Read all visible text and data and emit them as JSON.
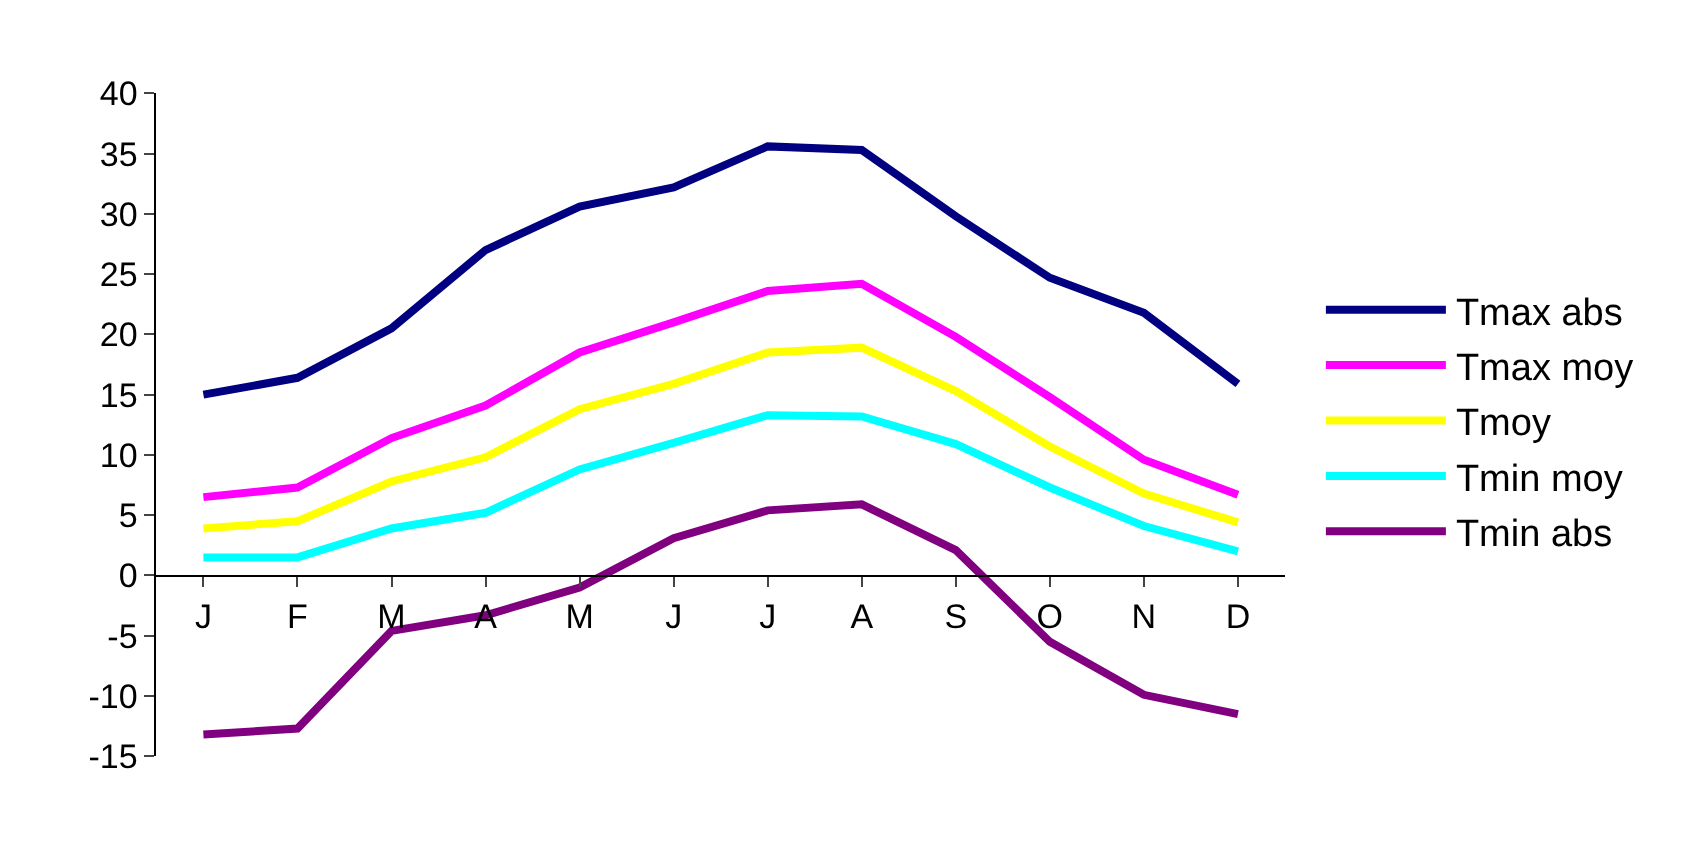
{
  "chart_data": {
    "type": "line",
    "categories": [
      "J",
      "F",
      "M",
      "A",
      "M",
      "J",
      "J",
      "A",
      "S",
      "O",
      "N",
      "D"
    ],
    "series": [
      {
        "name": "Tmax abs",
        "color": "#000080",
        "values": [
          15,
          16.4,
          20.5,
          27,
          30.6,
          32.2,
          35.6,
          35.3,
          29.8,
          24.7,
          21.8,
          15.9
        ]
      },
      {
        "name": "Tmax moy",
        "color": "#ff00ff",
        "values": [
          6.5,
          7.3,
          11.4,
          14.1,
          18.5,
          21,
          23.6,
          24.2,
          19.8,
          14.8,
          9.6,
          6.7
        ]
      },
      {
        "name": "Tmoy",
        "color": "#ffff00",
        "values": [
          3.9,
          4.5,
          7.8,
          9.8,
          13.8,
          15.9,
          18.5,
          18.9,
          15.3,
          10.7,
          6.8,
          4.4
        ]
      },
      {
        "name": "Tmin moy",
        "color": "#00ffff",
        "values": [
          1.5,
          1.5,
          3.9,
          5.2,
          8.8,
          11,
          13.3,
          13.2,
          10.9,
          7.3,
          4.1,
          2
        ]
      },
      {
        "name": "Tmin abs",
        "color": "#800080",
        "values": [
          -13.2,
          -12.7,
          -4.6,
          -3.3,
          -1,
          3.1,
          5.4,
          5.9,
          2.1,
          -5.5,
          -9.9,
          -11.5
        ]
      }
    ],
    "ylim": [
      -15,
      40
    ],
    "yticks": [
      -15,
      -10,
      -5,
      0,
      5,
      10,
      15,
      20,
      25,
      30,
      35,
      40
    ],
    "grid": false,
    "legend": "right",
    "marker": "none",
    "line_style": "solid"
  }
}
